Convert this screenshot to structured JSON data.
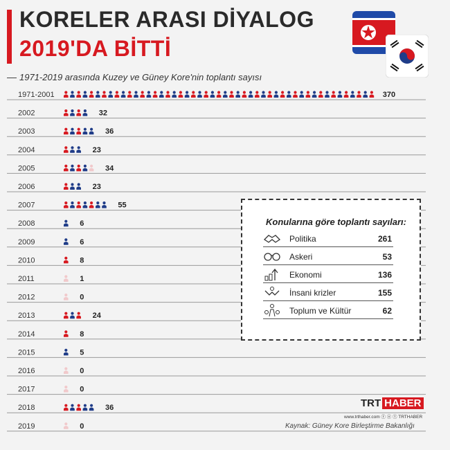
{
  "header": {
    "title_line1": "KORELER ARASI DİYALOG",
    "title_line2": "2019'DA BİTTİ",
    "subtitle": "1971-2019 arasında Kuzey ve Güney Kore'nin toplantı sayısı"
  },
  "colors": {
    "red": "#d71920",
    "blue": "#1f3c88",
    "pale": "#f1c9cb",
    "dark": "#2a2a2a"
  },
  "chart_data": {
    "type": "bar",
    "style": "pictogram",
    "categories": [
      "1971-2001",
      "2002",
      "2003",
      "2004",
      "2005",
      "2006",
      "2007",
      "2008",
      "2009",
      "2010",
      "2011",
      "2012",
      "2013",
      "2014",
      "2015",
      "2016",
      "2017",
      "2018",
      "2019"
    ],
    "values": [
      370,
      32,
      36,
      23,
      34,
      23,
      55,
      6,
      6,
      8,
      1,
      0,
      24,
      8,
      5,
      0,
      0,
      36,
      0
    ],
    "title": "1971-2019 arasında Kuzey ve Güney Kore'nin toplantı sayısı"
  },
  "topics": {
    "title": "Konularına göre toplantı sayıları:",
    "items": [
      {
        "label": "Politika",
        "value": "261",
        "icon": "handshake-icon"
      },
      {
        "label": "Askeri",
        "value": "53",
        "icon": "binoculars-icon"
      },
      {
        "label": "Ekonomi",
        "value": "136",
        "icon": "growth-chart-icon"
      },
      {
        "label": "İnsani krizler",
        "value": "155",
        "icon": "hands-icon"
      },
      {
        "label": "Toplum ve Kültür",
        "value": "62",
        "icon": "people-icon"
      }
    ]
  },
  "footer": {
    "brand_1": "TRT",
    "brand_2": "HABER",
    "social": "www.trthaber.com  ⓕ ⓞ ⓣ TRTHABER",
    "source": "Kaynak: Güney Kore Birleştirme Bakanlığı"
  }
}
